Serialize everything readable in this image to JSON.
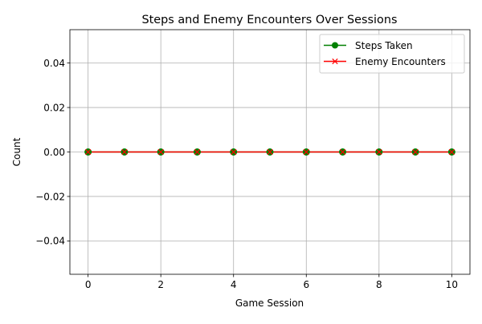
{
  "chart_data": {
    "type": "line",
    "title": "Steps and Enemy Encounters Over Sessions",
    "xlabel": "Game Session",
    "ylabel": "Count",
    "xlim": [
      -0.5,
      10.5
    ],
    "ylim": [
      -0.055,
      0.055
    ],
    "xticks": [
      0,
      2,
      4,
      6,
      8,
      10
    ],
    "xtick_labels": [
      "0",
      "2",
      "4",
      "6",
      "8",
      "10"
    ],
    "yticks": [
      -0.04,
      -0.02,
      0.0,
      0.02,
      0.04
    ],
    "ytick_labels": [
      "−0.04",
      "−0.02",
      "0.00",
      "0.02",
      "0.04"
    ],
    "grid": true,
    "legend_position": "top-right",
    "x": [
      0,
      1,
      2,
      3,
      4,
      5,
      6,
      7,
      8,
      9,
      10
    ],
    "series": [
      {
        "name": "Steps Taken",
        "values": [
          0,
          0,
          0,
          0,
          0,
          0,
          0,
          0,
          0,
          0,
          0
        ],
        "color": "#008000",
        "marker": "circle"
      },
      {
        "name": "Enemy Encounters",
        "values": [
          0,
          0,
          0,
          0,
          0,
          0,
          0,
          0,
          0,
          0,
          0
        ],
        "color": "#ff0000",
        "marker": "x"
      }
    ]
  }
}
